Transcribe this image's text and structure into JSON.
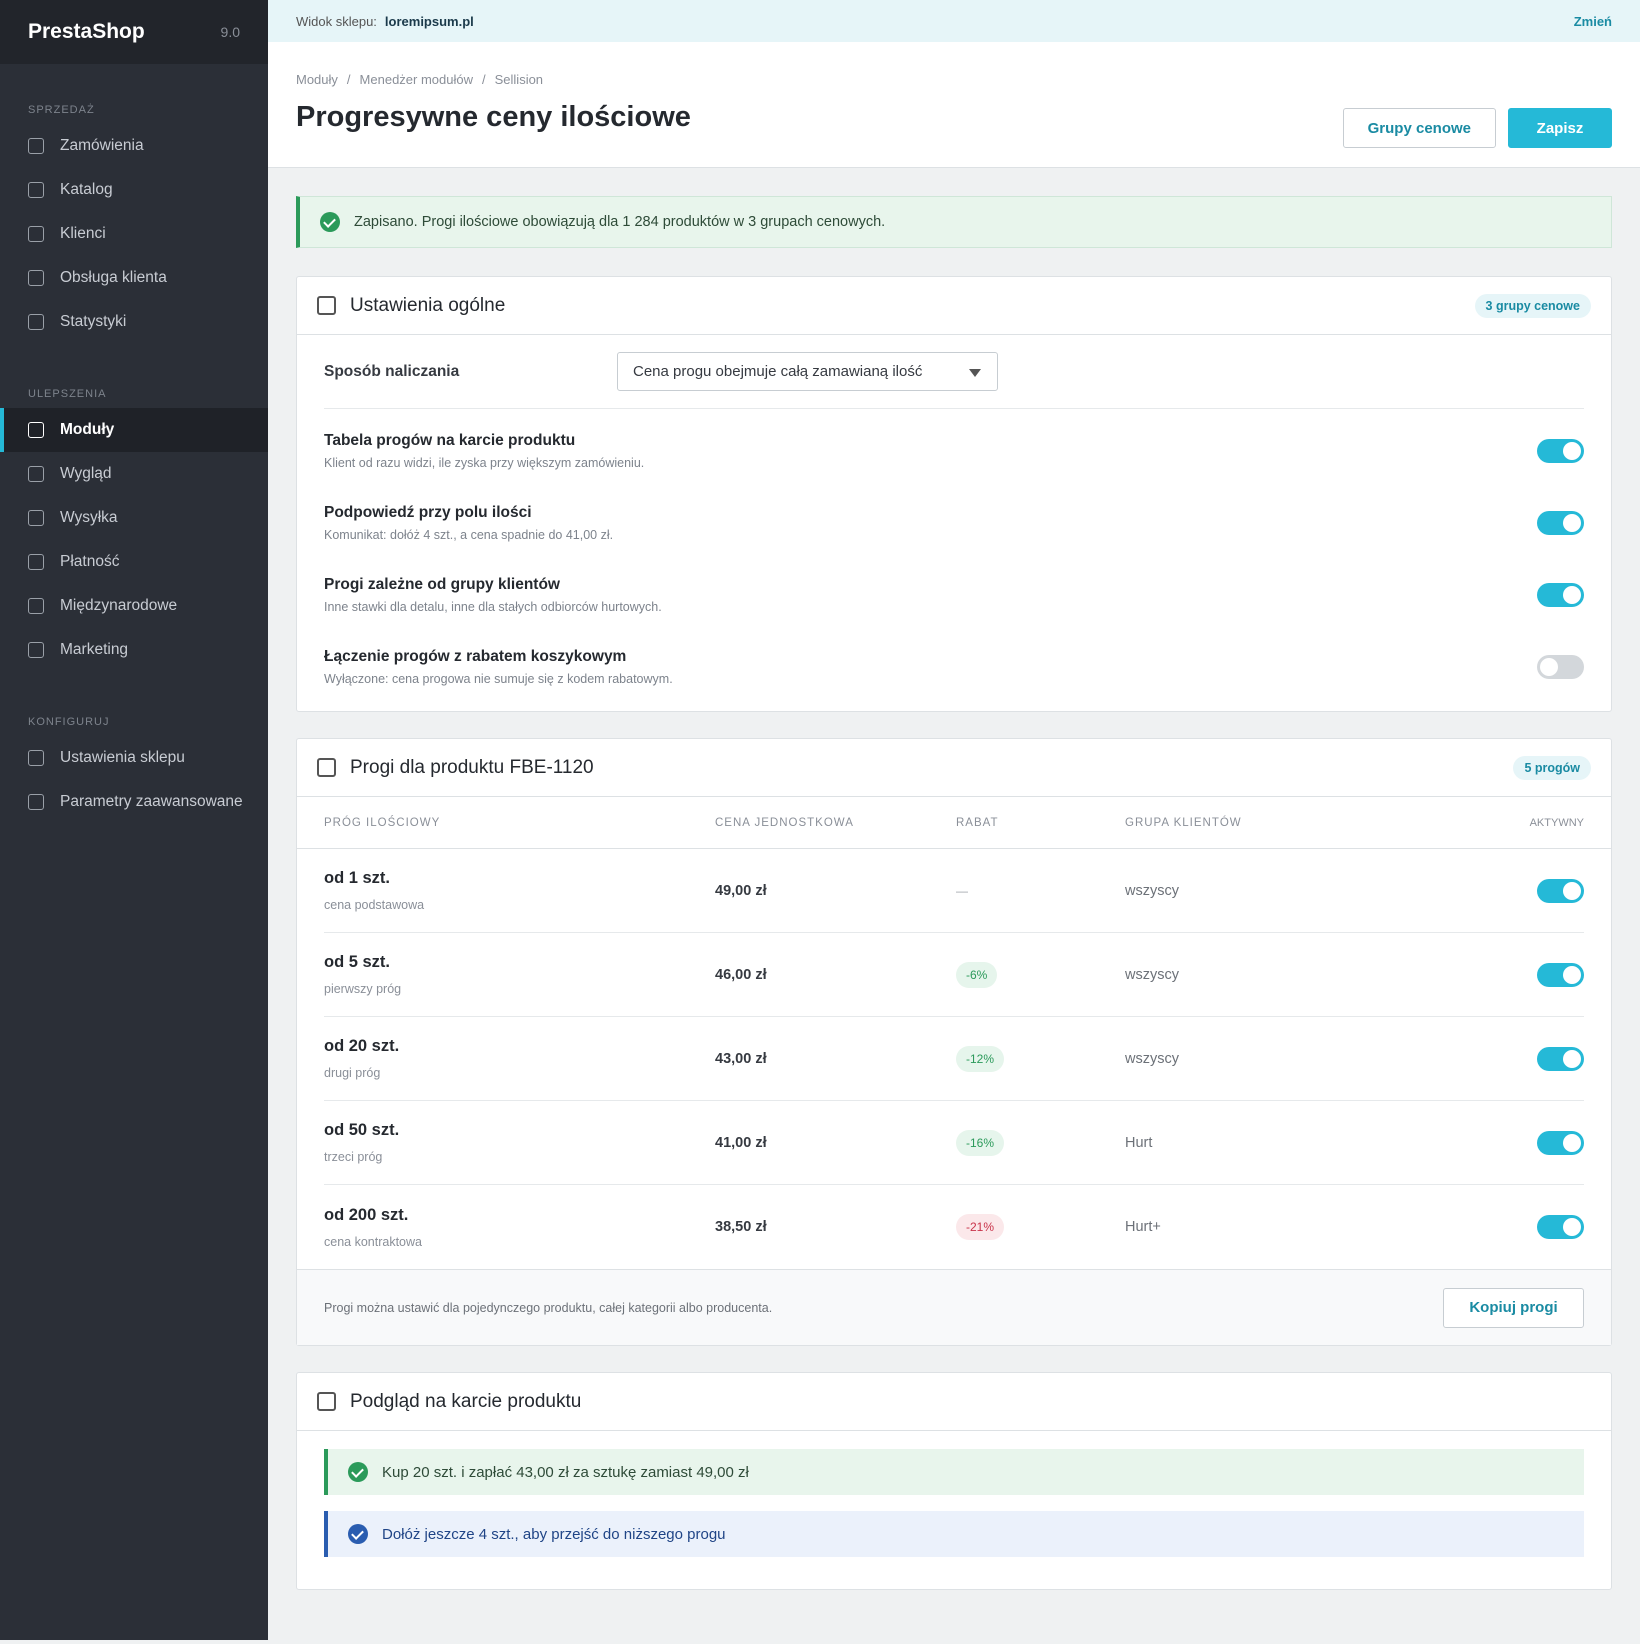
{
  "sidebar": {
    "brand": "PrestaShop",
    "version": "9.0",
    "active_item": [
      1,
      0
    ],
    "sections": [
      {
        "title": "SPRZEDAŻ",
        "items": [
          "Zamówienia",
          "Katalog",
          "Klienci",
          "Obsługa klienta",
          "Statystyki"
        ]
      },
      {
        "title": "ULEPSZENIA",
        "items": [
          "Moduły",
          "Wygląd",
          "Wysyłka",
          "Płatność",
          "Międzynarodowe",
          "Marketing"
        ]
      },
      {
        "title": "KONFIGURUJ",
        "items": [
          "Ustawienia sklepu",
          "Parametry zaawansowane"
        ]
      }
    ]
  },
  "topbar": {
    "label": "Widok sklepu:",
    "shop": "loremipsum.pl",
    "action": "Zmień"
  },
  "header": {
    "breadcrumb": [
      "Moduły",
      "Menedżer modułów",
      "Sellision"
    ],
    "title": "Progresywne ceny ilościowe",
    "buttons": [
      "Grupy cenowe",
      "Zapisz"
    ]
  },
  "alert": "Zapisano. Progi ilościowe obowiązują dla 1 284 produktów w 3 grupach cenowych.",
  "general": {
    "title": "Ustawienia ogólne",
    "badge": "3 grupy cenowe",
    "field_label": "Sposób naliczania",
    "select": "Cena progu obejmuje całą zamawianą ilość",
    "settings": [
      {
        "label": "Tabela progów na karcie produktu",
        "description": "Klient od razu widzi, ile zyska przy większym zamówieniu.",
        "enabled": true
      },
      {
        "label": "Podpowiedź przy polu ilości",
        "description": "Komunikat: dołóż 4 szt., a cena spadnie do 41,00 zł.",
        "enabled": true
      },
      {
        "label": "Progi zależne od grupy klientów",
        "description": "Inne stawki dla detalu, inne dla stałych odbiorców hurtowych.",
        "enabled": true
      },
      {
        "label": "Łączenie progów z rabatem koszykowym",
        "description": "Wyłączone: cena progowa nie sumuje się z kodem rabatowym.",
        "enabled": false
      }
    ]
  },
  "thresholds": {
    "title": "Progi dla produktu FBE-1120",
    "badge": "5 progów",
    "columns": [
      "PRÓG ILOŚCIOWY",
      "CENA JEDNOSTKOWA",
      "RABAT",
      "GRUPA KLIENTÓW",
      "AKTYWNY"
    ],
    "rows": [
      {
        "threshold": "od 1 szt.",
        "note": "cena podstawowa",
        "price": "49,00 zł",
        "discount": "—",
        "discount_tone": "none",
        "group": "wszyscy",
        "active": true
      },
      {
        "threshold": "od 5 szt.",
        "note": "pierwszy próg",
        "price": "46,00 zł",
        "discount": "-6%",
        "discount_tone": "positive",
        "group": "wszyscy",
        "active": true
      },
      {
        "threshold": "od 20 szt.",
        "note": "drugi próg",
        "price": "43,00 zł",
        "discount": "-12%",
        "discount_tone": "positive",
        "group": "wszyscy",
        "active": true
      },
      {
        "threshold": "od 50 szt.",
        "note": "trzeci próg",
        "price": "41,00 zł",
        "discount": "-16%",
        "discount_tone": "positive",
        "group": "Hurt",
        "active": true
      },
      {
        "threshold": "od 200 szt.",
        "note": "cena kontraktowa",
        "price": "38,50 zł",
        "discount": "-21%",
        "discount_tone": "negative",
        "group": "Hurt+",
        "active": true
      }
    ],
    "footer_text": "Progi można ustawić dla pojedynczego produktu, całej kategorii albo producenta.",
    "button": "Kopiuj progi"
  },
  "preview": {
    "title": "Podgląd na karcie produktu",
    "messages": [
      {
        "text": "Kup 20 szt. i zapłać 43,00 zł za sztukę zamiast 49,00 zł",
        "tone": "success"
      },
      {
        "text": "Dołóż jeszcze 4 szt., aby przejść do niższego progu",
        "tone": "info"
      }
    ]
  }
}
